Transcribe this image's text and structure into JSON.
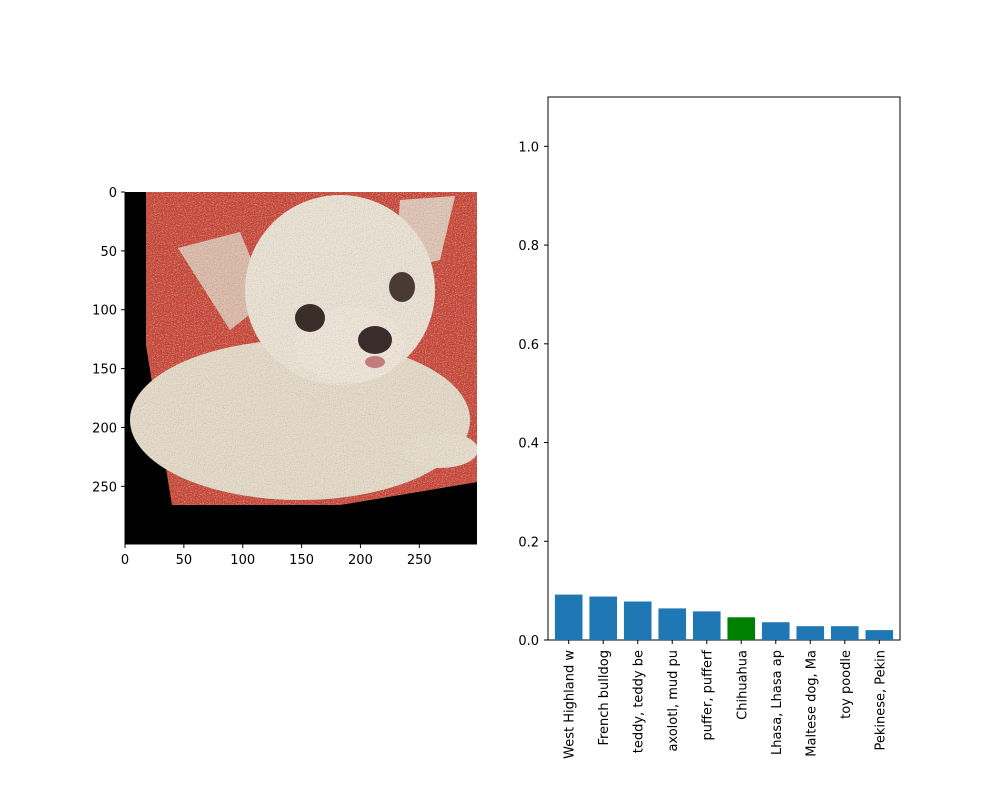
{
  "image_panel": {
    "x_ticks": [
      "0",
      "50",
      "100",
      "150",
      "200",
      "250"
    ],
    "y_ticks": [
      "0",
      "50",
      "100",
      "150",
      "200",
      "250"
    ],
    "x_tick_values": [
      0,
      50,
      100,
      150,
      200,
      250
    ],
    "y_tick_values": [
      0,
      50,
      100,
      150,
      200,
      250
    ],
    "xlim": [
      0,
      299
    ],
    "ylim": [
      299,
      0
    ],
    "subject": "noisy Chihuahua puppy photo on red background, rotated with black borders",
    "colors": {
      "background": "#c8473a",
      "dog_fur": "#e6dccb",
      "border": "#000000"
    }
  },
  "chart_data": {
    "type": "bar",
    "categories": [
      "West Highland w",
      "French bulldog",
      "teddy, teddy be",
      "axolotl, mud pu",
      "puffer, pufferf",
      "Chihuahua",
      "Lhasa, Lhasa ap",
      "Maltese dog, Ma",
      "toy poodle",
      "Pekinese, Pekin"
    ],
    "values": [
      0.092,
      0.088,
      0.078,
      0.064,
      0.058,
      0.046,
      0.036,
      0.028,
      0.028,
      0.02
    ],
    "highlight_index": 5,
    "ylim": [
      0,
      1.1
    ],
    "y_ticks": [
      0.0,
      0.2,
      0.4,
      0.6,
      0.8,
      1.0
    ],
    "y_tick_labels": [
      "0.0",
      "0.2",
      "0.4",
      "0.6",
      "0.8",
      "1.0"
    ],
    "colors": {
      "bar": "#1f77b4",
      "highlight": "#008000"
    }
  }
}
